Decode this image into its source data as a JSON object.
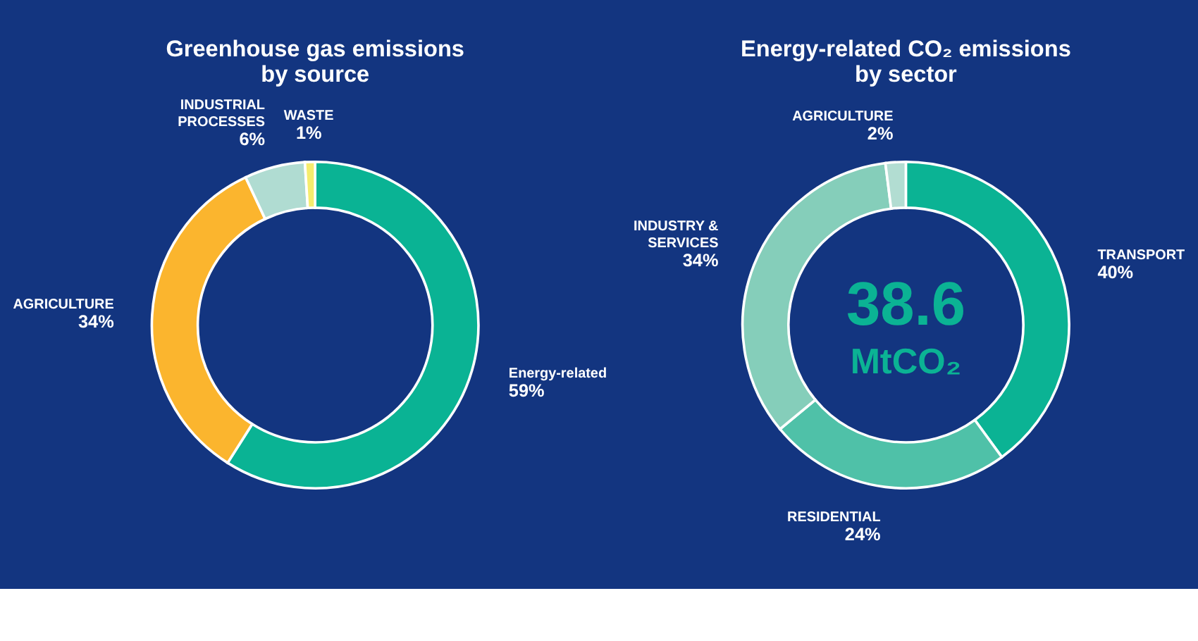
{
  "chart_data": [
    {
      "type": "donut",
      "title": "Greenhouse gas emissions\nby source",
      "categories": [
        "Energy-related",
        "AGRICULTURE",
        "INDUSTRIAL\nPROCESSES",
        "WASTE"
      ],
      "values": [
        59,
        34,
        6,
        1
      ],
      "colors": [
        "#0ab394",
        "#fbb52e",
        "#b0dcd2",
        "#f6ec6e"
      ],
      "value_labels": [
        "59%",
        "34%",
        "6%",
        "1%"
      ],
      "legend": false
    },
    {
      "type": "donut",
      "title": "Energy-related CO₂ emissions\nby sector",
      "categories": [
        "TRANSPORT",
        "RESIDENTIAL",
        "INDUSTRY &\nSERVICES",
        "AGRICULTURE"
      ],
      "values": [
        40,
        24,
        34,
        2
      ],
      "colors": [
        "#0bb394",
        "#4fc1a8",
        "#85ceba",
        "#b2ddd2"
      ],
      "value_labels": [
        "40%",
        "24%",
        "34%",
        "2%"
      ],
      "annotations": [
        "38.6",
        "MtCO₂"
      ],
      "legend": false
    }
  ]
}
